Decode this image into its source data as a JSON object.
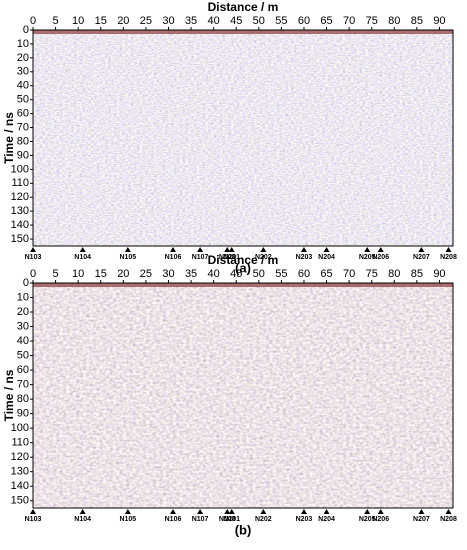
{
  "chart_data": [
    {
      "type": "radargram",
      "panel_label": "(a)",
      "xlabel": "Distance / m",
      "ylabel": "Time / ns",
      "xlim": [
        0,
        93
      ],
      "xticks": [
        0,
        5,
        10,
        15,
        20,
        25,
        30,
        35,
        40,
        45,
        50,
        55,
        60,
        65,
        70,
        75,
        80,
        85,
        90
      ],
      "ylim": [
        0,
        155
      ],
      "yticks": [
        0,
        10,
        20,
        30,
        40,
        50,
        60,
        70,
        80,
        90,
        100,
        110,
        120,
        130,
        140,
        150
      ],
      "markers": [
        {
          "label": "N103",
          "x": 0
        },
        {
          "label": "N104",
          "x": 11
        },
        {
          "label": "N105",
          "x": 21
        },
        {
          "label": "N106",
          "x": 31
        },
        {
          "label": "N107",
          "x": 37
        },
        {
          "label": "N108",
          "x": 43
        },
        {
          "label": "N201",
          "x": 44
        },
        {
          "label": "N202",
          "x": 51
        },
        {
          "label": "N203",
          "x": 60
        },
        {
          "label": "N204",
          "x": 65
        },
        {
          "label": "N205",
          "x": 74
        },
        {
          "label": "N206",
          "x": 77
        },
        {
          "label": "N207",
          "x": 86
        },
        {
          "label": "N208",
          "x": 92
        }
      ]
    },
    {
      "type": "radargram",
      "panel_label": "(b)",
      "xlabel": "Distance / m",
      "ylabel": "Time / ns",
      "xlim": [
        0,
        93
      ],
      "xticks": [
        0,
        5,
        10,
        15,
        20,
        25,
        30,
        35,
        40,
        45,
        50,
        55,
        60,
        65,
        70,
        75,
        80,
        85,
        90
      ],
      "ylim": [
        0,
        155
      ],
      "yticks": [
        0,
        10,
        20,
        30,
        40,
        50,
        60,
        70,
        80,
        90,
        100,
        110,
        120,
        130,
        140,
        150
      ],
      "markers": [
        {
          "label": "N103",
          "x": 0
        },
        {
          "label": "N104",
          "x": 11
        },
        {
          "label": "N105",
          "x": 21
        },
        {
          "label": "N106",
          "x": 31
        },
        {
          "label": "N107",
          "x": 37
        },
        {
          "label": "N108",
          "x": 43
        },
        {
          "label": "N201",
          "x": 44
        },
        {
          "label": "N202",
          "x": 51
        },
        {
          "label": "N203",
          "x": 60
        },
        {
          "label": "N204",
          "x": 65
        },
        {
          "label": "N205",
          "x": 74
        },
        {
          "label": "N206",
          "x": 77
        },
        {
          "label": "N207",
          "x": 86
        },
        {
          "label": "N208",
          "x": 92
        }
      ]
    }
  ]
}
